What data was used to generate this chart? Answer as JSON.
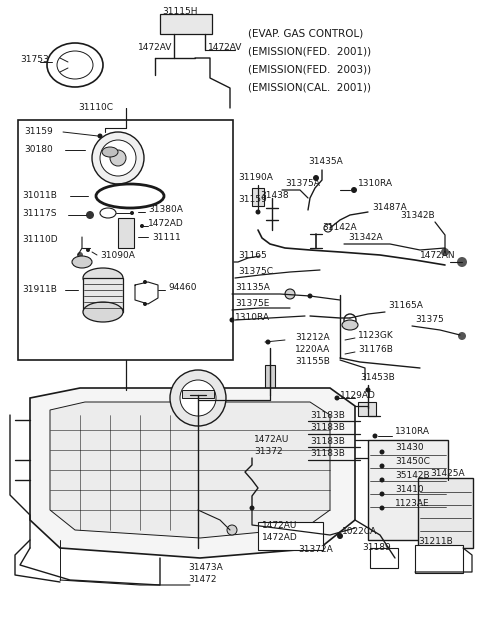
{
  "fig_width": 4.8,
  "fig_height": 6.36,
  "dpi": 100,
  "bg": "#ffffff",
  "lc": "#1a1a1a",
  "top_right_lines": [
    "(EVAP. GAS CONTROL)",
    "(EMISSION(FED.  2001))",
    "(EMISSION(FED.  2003))",
    "(EMISSION(CAL.  2001))"
  ]
}
